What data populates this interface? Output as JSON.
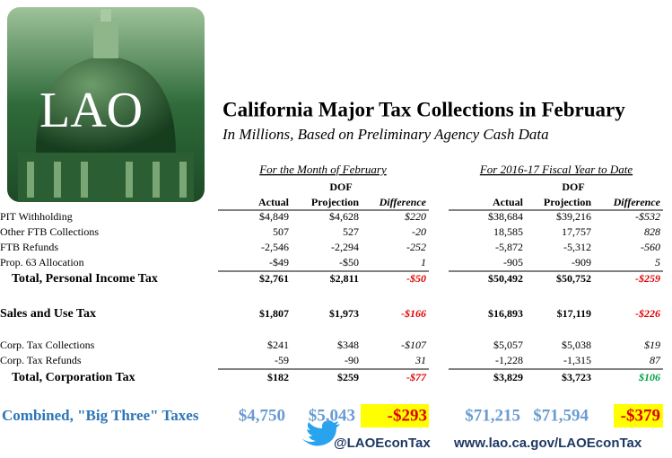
{
  "logo": "LAO",
  "title": "California Major Tax Collections in February",
  "subtitle": "In Millions, Based on Preliminary Agency Cash Data",
  "table": {
    "groups": [
      "For the Month of February",
      "For 2016-17 Fiscal Year to Date"
    ],
    "dof": [
      "DOF",
      "DOF"
    ],
    "columns": [
      "Actual",
      "Projection",
      "Difference",
      "Actual",
      "Projection",
      "Difference"
    ],
    "rows": [
      {
        "label": "PIT Withholding",
        "cells": [
          "$4,849",
          "$4,628",
          "$220",
          "$38,684",
          "$39,216",
          "-$532"
        ]
      },
      {
        "label": "Other FTB Collections",
        "cells": [
          "507",
          "527",
          "-20",
          "18,585",
          "17,757",
          "828"
        ]
      },
      {
        "label": "FTB Refunds",
        "cells": [
          "-2,546",
          "-2,294",
          "-252",
          "-5,872",
          "-5,312",
          "-560"
        ]
      },
      {
        "label": "Prop. 63 Allocation",
        "cells": [
          "-$49",
          "-$50",
          "1",
          "-905",
          "-909",
          "5"
        ]
      },
      {
        "label": "Total, Personal Income Tax",
        "cells": [
          "$2,761",
          "$2,811",
          "-$50",
          "$50,492",
          "$50,752",
          "-$259"
        ]
      },
      {
        "label": "Sales and Use Tax",
        "cells": [
          "$1,807",
          "$1,973",
          "-$166",
          "$16,893",
          "$17,119",
          "-$226"
        ]
      },
      {
        "label": "Corp. Tax Collections",
        "cells": [
          "$241",
          "$348",
          "-$107",
          "$5,057",
          "$5,038",
          "$19"
        ]
      },
      {
        "label": "Corp. Tax Refunds",
        "cells": [
          "-59",
          "-90",
          "31",
          "-1,228",
          "-1,315",
          "87"
        ]
      },
      {
        "label": "Total, Corporation Tax",
        "cells": [
          "$182",
          "$259",
          "-$77",
          "$3,829",
          "$3,723",
          "$106"
        ]
      }
    ]
  },
  "combined": {
    "label": "Combined, \"Big Three\" Taxes",
    "cells": [
      "$4,750",
      "$5,043",
      "-$293",
      "$71,215",
      "$71,594",
      "-$379"
    ]
  },
  "footer": {
    "twitter": "@LAOEconTax",
    "web": "www.lao.ca.gov/LAOEconTax"
  }
}
